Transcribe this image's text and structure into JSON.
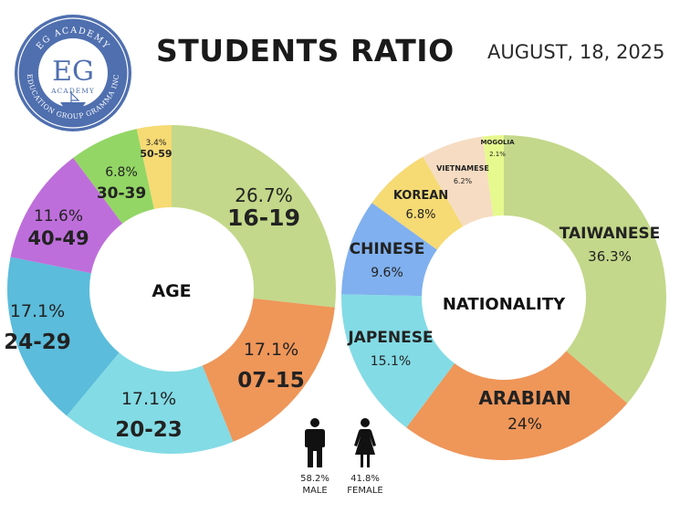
{
  "header": {
    "title": "STUDENTS RATIO",
    "date": "AUGUST, 18, 2025"
  },
  "logo": {
    "top_text": "EG ACADEMY",
    "monogram": "EG",
    "sub_text": "ACADEMY",
    "bottom_text": "EDUCATION GROUP GRAMMA INC",
    "color": "#4f6faf"
  },
  "chart_data": [
    {
      "type": "pie",
      "center_label": "AGE",
      "slices": [
        {
          "label": "16-19",
          "value": 26.7,
          "value_text": "26.7%",
          "color": "#c3d88a"
        },
        {
          "label": "07-15",
          "value": 17.1,
          "value_text": "17.1%",
          "color": "#ef9659"
        },
        {
          "label": "20-23",
          "value": 17.1,
          "value_text": "17.1%",
          "color": "#83dbe5"
        },
        {
          "label": "24-29",
          "value": 17.1,
          "value_text": "17.1%",
          "color": "#5bbcdb"
        },
        {
          "label": "40-49",
          "value": 11.6,
          "value_text": "11.6%",
          "color": "#be6edb"
        },
        {
          "label": "30-39",
          "value": 6.8,
          "value_text": "6.8%",
          "color": "#93d665"
        },
        {
          "label": "50-59",
          "value": 3.4,
          "value_text": "3.4%",
          "color": "#f6da74"
        }
      ]
    },
    {
      "type": "pie",
      "center_label": "NATIONALITY",
      "slices": [
        {
          "label": "TAIWANESE",
          "value": 36.3,
          "value_text": "36.3%",
          "color": "#c3d88a"
        },
        {
          "label": "ARABIAN",
          "value": 24,
          "value_text": "24%",
          "color": "#ef9659"
        },
        {
          "label": "JAPENESE",
          "value": 15.1,
          "value_text": "15.1%",
          "color": "#83dbe5"
        },
        {
          "label": "CHINESE",
          "value": 9.6,
          "value_text": "9.6%",
          "color": "#80b0ef"
        },
        {
          "label": "KOREAN",
          "value": 6.8,
          "value_text": "6.8%",
          "color": "#f6da74"
        },
        {
          "label": "VIETNAMESE",
          "value": 6.2,
          "value_text": "6.2%",
          "color": "#f6dcc2"
        },
        {
          "label": "MOGOLIA",
          "value": 2.1,
          "value_text": "2.1%",
          "color": "#e6f98e"
        }
      ]
    }
  ],
  "gender": {
    "male": {
      "percent": "58.2%",
      "label": "MALE",
      "value": 58.2
    },
    "female": {
      "percent": "41.8%",
      "label": "FEMALE",
      "value": 41.8
    }
  }
}
